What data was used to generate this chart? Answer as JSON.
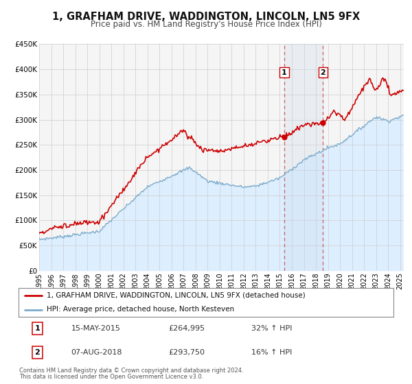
{
  "title": "1, GRAFHAM DRIVE, WADDINGTON, LINCOLN, LN5 9FX",
  "subtitle": "Price paid vs. HM Land Registry's House Price Index (HPI)",
  "ylim": [
    0,
    450000
  ],
  "xlim_start": 1995.0,
  "xlim_end": 2025.3,
  "yticks": [
    0,
    50000,
    100000,
    150000,
    200000,
    250000,
    300000,
    350000,
    400000,
    450000
  ],
  "ytick_labels": [
    "£0",
    "£50K",
    "£100K",
    "£150K",
    "£200K",
    "£250K",
    "£300K",
    "£350K",
    "£400K",
    "£450K"
  ],
  "xticks": [
    1995,
    1996,
    1997,
    1998,
    1999,
    2000,
    2001,
    2002,
    2003,
    2004,
    2005,
    2006,
    2007,
    2008,
    2009,
    2010,
    2011,
    2012,
    2013,
    2014,
    2015,
    2016,
    2017,
    2018,
    2019,
    2020,
    2021,
    2022,
    2023,
    2024,
    2025
  ],
  "sale1_x": 2015.37,
  "sale1_y": 264995,
  "sale2_x": 2018.59,
  "sale2_y": 293750,
  "sale1_date": "15-MAY-2015",
  "sale1_price": "£264,995",
  "sale1_hpi": "32% ↑ HPI",
  "sale2_date": "07-AUG-2018",
  "sale2_price": "£293,750",
  "sale2_hpi": "16% ↑ HPI",
  "red_line_color": "#cc0000",
  "blue_line_color": "#7aabcc",
  "blue_fill_color": "#ddeeff",
  "background_color": "#f5f5f5",
  "grid_color": "#cccccc",
  "legend_line1": "1, GRAFHAM DRIVE, WADDINGTON, LINCOLN, LN5 9FX (detached house)",
  "legend_line2": "HPI: Average price, detached house, North Kesteven",
  "footer1": "Contains HM Land Registry data © Crown copyright and database right 2024.",
  "footer2": "This data is licensed under the Open Government Licence v3.0."
}
